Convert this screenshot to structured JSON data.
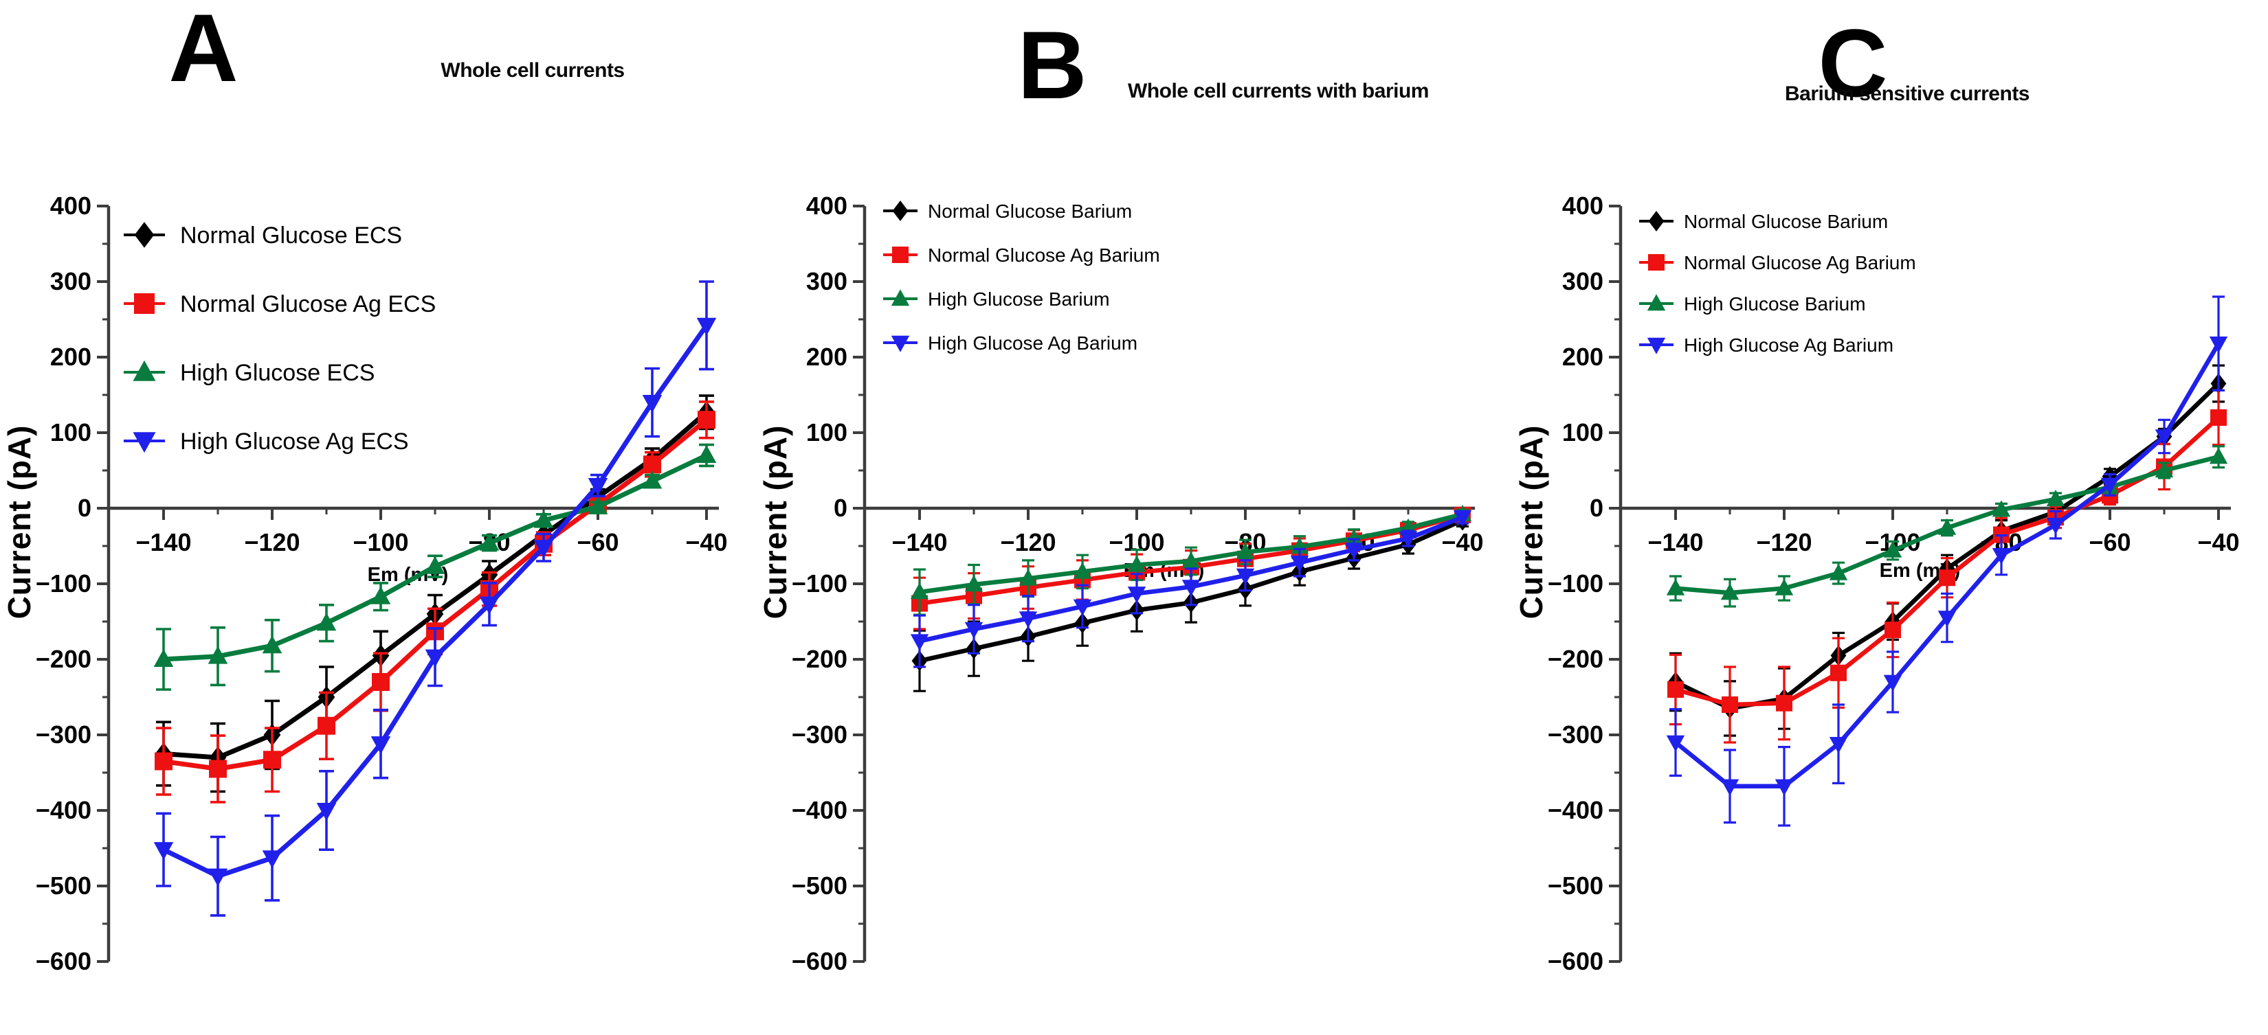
{
  "figure": {
    "background_color": "#ffffff",
    "axis_color": "#3d3d3d",
    "x_axis_label": "Em (mV)",
    "y_axis_label": "Current (pA)"
  },
  "chart_data": [
    {
      "type": "line",
      "panel_label": "A",
      "title": "Whole cell currents",
      "xlabel": "Em (mV)",
      "ylabel": "Current (pA)",
      "xlim": [
        -150,
        -38
      ],
      "ylim": [
        -600,
        400
      ],
      "x_major_ticks": [
        -140,
        -120,
        -100,
        -80,
        -60,
        -40
      ],
      "x_minor_ticks": [
        -130,
        -110,
        -90,
        -70,
        -50
      ],
      "y_major_ticks": [
        400,
        300,
        200,
        100,
        0,
        -100,
        -200,
        -300,
        -400,
        -500,
        -600
      ],
      "y_minor_step": 50,
      "grid": false,
      "error_bars": true,
      "legend_position": "top-left",
      "x": [
        -140,
        -130,
        -120,
        -110,
        -100,
        -90,
        -80,
        -70,
        -60,
        -50,
        -40
      ],
      "series": [
        {
          "name": "Normal Glucose ECS",
          "color": "#000000",
          "marker": "diamond",
          "values": [
            -325,
            -330,
            -300,
            -250,
            -195,
            -140,
            -88,
            -35,
            15,
            65,
            127
          ],
          "errors": [
            42,
            45,
            45,
            40,
            32,
            25,
            18,
            12,
            10,
            14,
            22
          ]
        },
        {
          "name": "Normal Glucose Ag ECS",
          "color": "#EE1111",
          "marker": "square",
          "values": [
            -335,
            -345,
            -333,
            -288,
            -230,
            -163,
            -107,
            -47,
            5,
            58,
            117
          ],
          "errors": [
            44,
            44,
            42,
            44,
            38,
            30,
            22,
            15,
            10,
            16,
            24
          ]
        },
        {
          "name": "High Glucose ECS",
          "color": "#077C3E",
          "marker": "triangle-up",
          "values": [
            -200,
            -196,
            -182,
            -152,
            -117,
            -77,
            -46,
            -16,
            2,
            36,
            70
          ],
          "errors": [
            40,
            38,
            34,
            24,
            18,
            14,
            10,
            8,
            6,
            8,
            14
          ]
        },
        {
          "name": "High Glucose Ag ECS",
          "color": "#2020EB",
          "marker": "triangle-down",
          "values": [
            -452,
            -487,
            -463,
            -400,
            -312,
            -197,
            -127,
            -52,
            30,
            140,
            242
          ],
          "errors": [
            48,
            52,
            56,
            52,
            45,
            38,
            28,
            18,
            14,
            45,
            58
          ]
        }
      ]
    },
    {
      "type": "line",
      "panel_label": "B",
      "title": "Whole cell currents with barium",
      "xlabel": "Em (mV)",
      "ylabel": "Current (pA)",
      "xlim": [
        -150,
        -38
      ],
      "ylim": [
        -600,
        400
      ],
      "x_major_ticks": [
        -140,
        -120,
        -100,
        -80,
        -60,
        -40
      ],
      "x_minor_ticks": [
        -130,
        -110,
        -90,
        -70,
        -50
      ],
      "y_major_ticks": [
        400,
        300,
        200,
        100,
        0,
        -100,
        -200,
        -300,
        -400,
        -500,
        -600
      ],
      "y_minor_step": 50,
      "grid": false,
      "error_bars": true,
      "legend_position": "top-left",
      "x": [
        -140,
        -130,
        -120,
        -110,
        -100,
        -90,
        -80,
        -70,
        -60,
        -50,
        -40
      ],
      "series": [
        {
          "name": "Normal Glucose Barium",
          "color": "#000000",
          "marker": "diamond",
          "values": [
            -202,
            -186,
            -170,
            -152,
            -135,
            -125,
            -107,
            -84,
            -66,
            -48,
            -16
          ],
          "errors": [
            40,
            36,
            32,
            30,
            28,
            26,
            22,
            18,
            14,
            12,
            8
          ]
        },
        {
          "name": "Normal Glucose Ag Barium",
          "color": "#EE1111",
          "marker": "square",
          "values": [
            -126,
            -116,
            -105,
            -95,
            -85,
            -78,
            -67,
            -56,
            -43,
            -29,
            -9
          ],
          "errors": [
            34,
            30,
            28,
            26,
            24,
            22,
            20,
            16,
            14,
            10,
            7
          ]
        },
        {
          "name": "High Glucose Barium",
          "color": "#077C3E",
          "marker": "triangle-up",
          "values": [
            -111,
            -101,
            -93,
            -84,
            -75,
            -70,
            -58,
            -51,
            -40,
            -26,
            -8
          ],
          "errors": [
            30,
            26,
            24,
            22,
            20,
            18,
            16,
            14,
            12,
            8,
            6
          ]
        },
        {
          "name": "High Glucose Ag Barium",
          "color": "#2020EB",
          "marker": "triangle-down",
          "values": [
            -176,
            -160,
            -146,
            -130,
            -113,
            -104,
            -89,
            -72,
            -55,
            -40,
            -12
          ],
          "errors": [
            34,
            32,
            30,
            28,
            26,
            24,
            20,
            18,
            14,
            10,
            8
          ]
        }
      ]
    },
    {
      "type": "line",
      "panel_label": "C",
      "title": "Barium sensitive currents",
      "xlabel": "Em (mV)",
      "ylabel": "Current (pA)",
      "xlim": [
        -150,
        -38
      ],
      "ylim": [
        -600,
        400
      ],
      "x_major_ticks": [
        -140,
        -120,
        -100,
        -80,
        -60,
        -40
      ],
      "x_minor_ticks": [
        -130,
        -110,
        -90,
        -70,
        -50
      ],
      "y_major_ticks": [
        400,
        300,
        200,
        100,
        0,
        -100,
        -200,
        -300,
        -400,
        -500,
        -600
      ],
      "y_minor_step": 50,
      "grid": false,
      "error_bars": true,
      "legend_position": "top-left",
      "x": [
        -140,
        -130,
        -120,
        -110,
        -100,
        -90,
        -80,
        -70,
        -60,
        -50,
        -40
      ],
      "series": [
        {
          "name": "Normal Glucose Barium",
          "color": "#000000",
          "marker": "diamond",
          "values": [
            -230,
            -265,
            -252,
            -195,
            -150,
            -80,
            -30,
            -5,
            42,
            95,
            165
          ],
          "errors": [
            38,
            36,
            40,
            30,
            24,
            18,
            14,
            12,
            10,
            10,
            24
          ]
        },
        {
          "name": "Normal Glucose Ag Barium",
          "color": "#EE1111",
          "marker": "square",
          "values": [
            -240,
            -260,
            -258,
            -218,
            -161,
            -92,
            -35,
            -12,
            17,
            55,
            120
          ],
          "errors": [
            46,
            50,
            48,
            46,
            36,
            26,
            22,
            14,
            12,
            30,
            36
          ]
        },
        {
          "name": "High Glucose Barium",
          "color": "#077C3E",
          "marker": "triangle-up",
          "values": [
            -106,
            -112,
            -106,
            -86,
            -56,
            -26,
            -2,
            12,
            28,
            50,
            68
          ],
          "errors": [
            16,
            18,
            16,
            14,
            12,
            10,
            8,
            8,
            8,
            10,
            14
          ]
        },
        {
          "name": "High Glucose Ag Barium",
          "color": "#2020EB",
          "marker": "triangle-down",
          "values": [
            -310,
            -368,
            -368,
            -312,
            -230,
            -145,
            -62,
            -22,
            31,
            95,
            218
          ],
          "errors": [
            44,
            48,
            52,
            52,
            40,
            32,
            26,
            18,
            14,
            22,
            62
          ]
        }
      ]
    }
  ]
}
